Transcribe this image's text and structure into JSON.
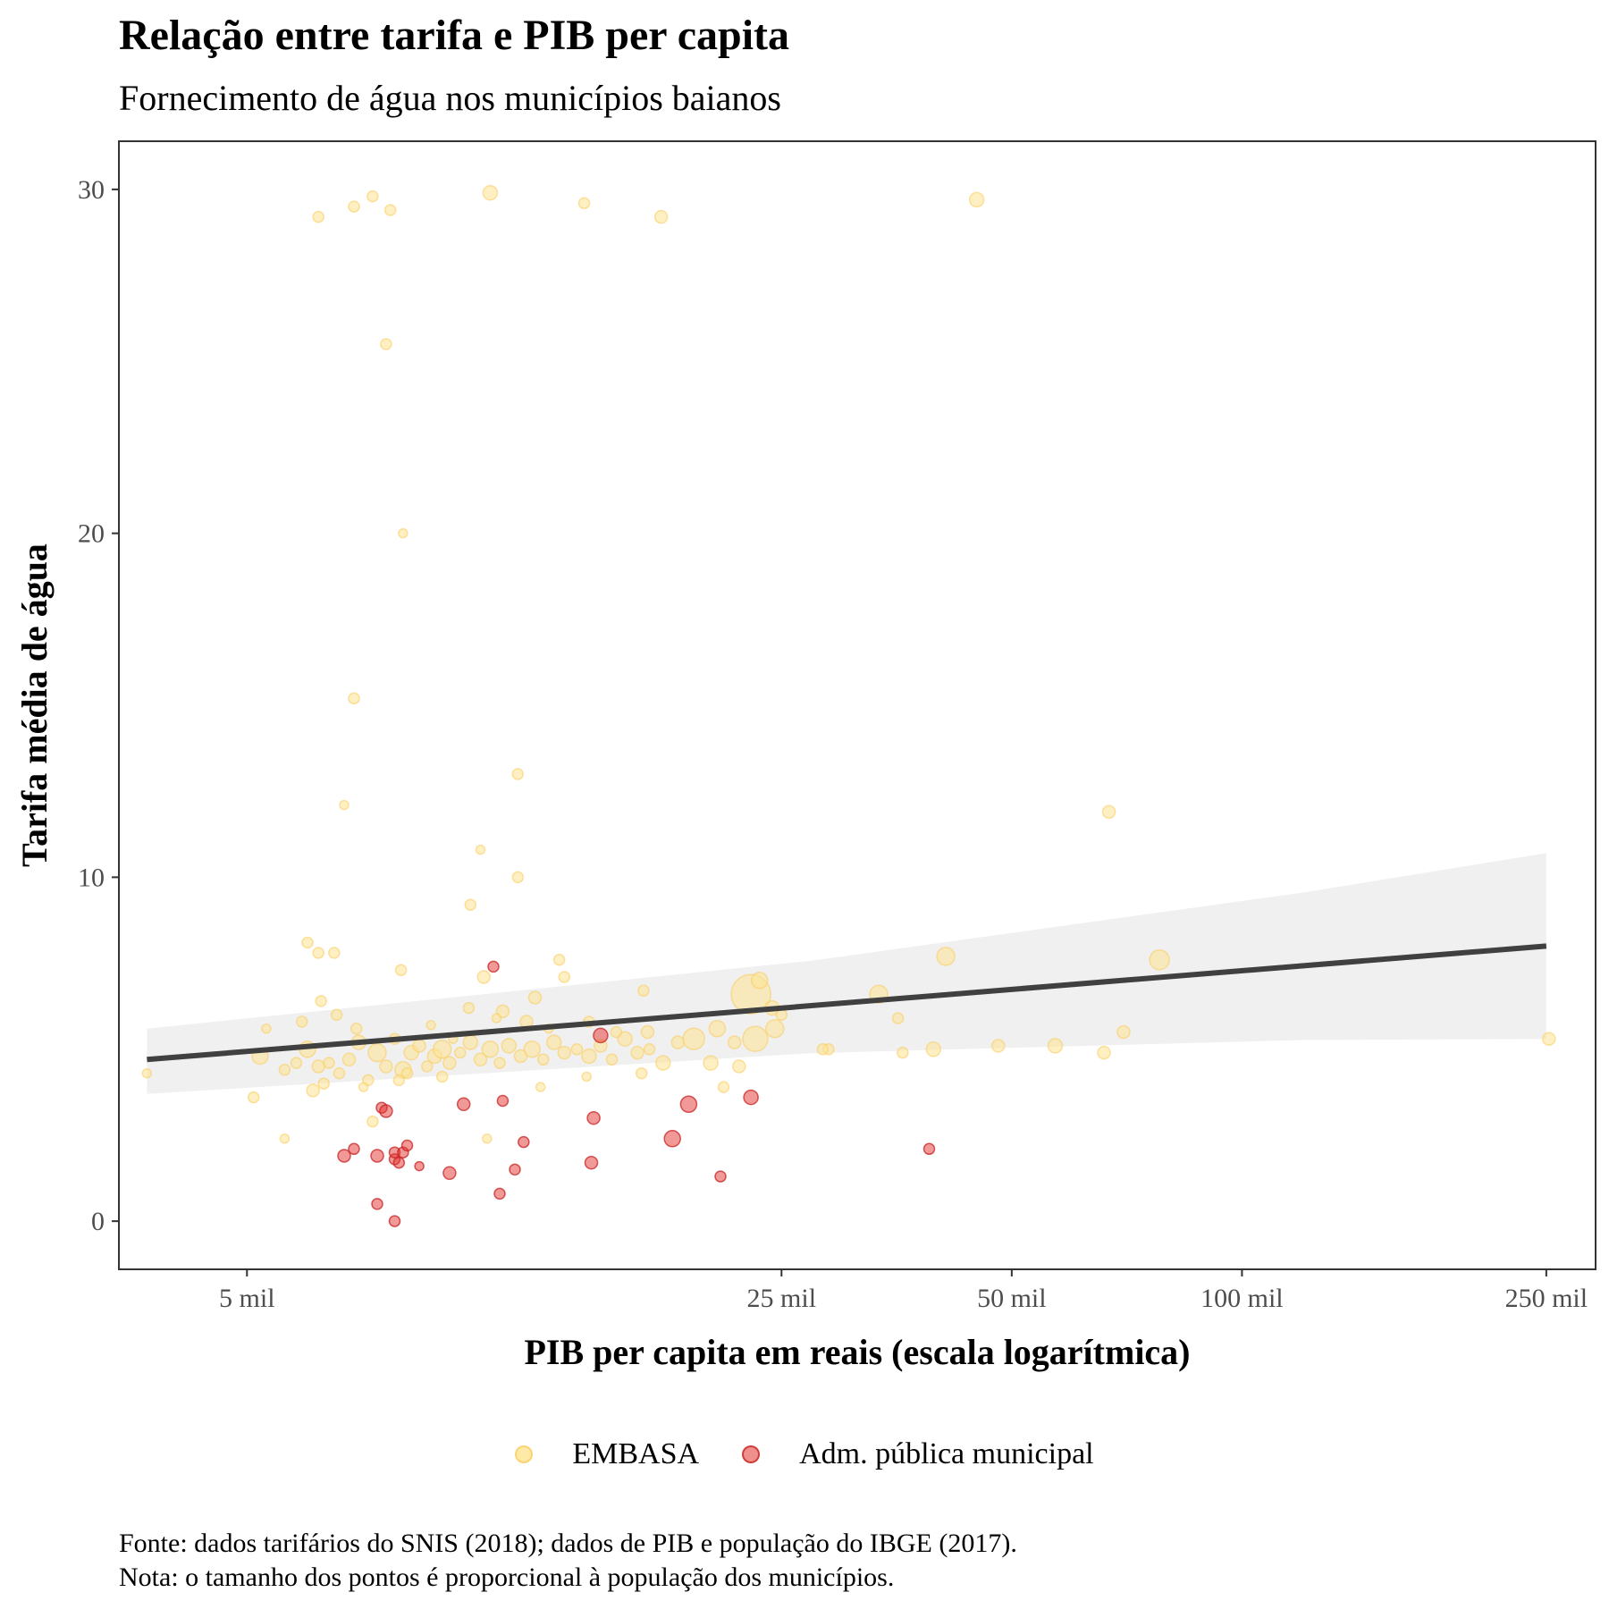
{
  "chart_data": {
    "type": "scatter",
    "title": "Relação entre tarifa e PIB per capita",
    "subtitle": "Fornecimento de água nos municípios baianos",
    "xlabel": "PIB per capita em reais (escala logarítmica)",
    "ylabel": "Tarifa média de água",
    "x_scale": "log",
    "xlim": [
      3400,
      290000
    ],
    "ylim": [
      -1.4,
      31.4
    ],
    "x_ticks": [
      {
        "value": 5000,
        "label": "5 mil"
      },
      {
        "value": 25000,
        "label": "25 mil"
      },
      {
        "value": 50000,
        "label": "50 mil"
      },
      {
        "value": 100000,
        "label": "100 mil"
      },
      {
        "value": 250000,
        "label": "250 mil"
      }
    ],
    "y_ticks": [
      {
        "value": 0,
        "label": "0"
      },
      {
        "value": 10,
        "label": "10"
      },
      {
        "value": 20,
        "label": "20"
      },
      {
        "value": 30,
        "label": "30"
      }
    ],
    "grid": false,
    "legend_position": "bottom",
    "colors": {
      "EMBASA": "#fee391",
      "Adm. pública municipal": "#e3342f",
      "trend": "#404040",
      "ribbon": "#ebebeb"
    },
    "trend_line": {
      "x": [
        3700,
        250000
      ],
      "y": [
        4.7,
        8.0
      ],
      "ci_lower": [
        3.7,
        5.3
      ],
      "ci_upper": [
        5.6,
        10.7
      ]
    },
    "series": [
      {
        "name": "EMBASA",
        "points": [
          [
            3700,
            4.3,
            5
          ],
          [
            5200,
            4.8,
            9
          ],
          [
            5300,
            5.6,
            5
          ],
          [
            5600,
            4.4,
            6
          ],
          [
            5800,
            4.6,
            6
          ],
          [
            6000,
            5.0,
            9
          ],
          [
            6200,
            4.5,
            7
          ],
          [
            6400,
            4.6,
            6
          ],
          [
            6600,
            4.3,
            6
          ],
          [
            6800,
            4.7,
            7
          ],
          [
            7000,
            5.2,
            8
          ],
          [
            7200,
            4.1,
            6
          ],
          [
            7400,
            4.9,
            10
          ],
          [
            7600,
            4.5,
            7
          ],
          [
            7800,
            5.3,
            6
          ],
          [
            8000,
            4.4,
            9
          ],
          [
            8200,
            4.9,
            8
          ],
          [
            8400,
            5.1,
            7
          ],
          [
            8600,
            4.5,
            6
          ],
          [
            8800,
            4.8,
            8
          ],
          [
            9000,
            5.0,
            10
          ],
          [
            9200,
            4.6,
            7
          ],
          [
            9500,
            4.9,
            6
          ],
          [
            9800,
            5.2,
            8
          ],
          [
            10100,
            4.7,
            7
          ],
          [
            10400,
            5.0,
            9
          ],
          [
            10700,
            4.6,
            6
          ],
          [
            11000,
            5.1,
            8
          ],
          [
            11400,
            4.8,
            7
          ],
          [
            11800,
            5.0,
            9
          ],
          [
            12200,
            4.7,
            6
          ],
          [
            12600,
            5.2,
            8
          ],
          [
            13000,
            4.9,
            7
          ],
          [
            13500,
            5.0,
            6
          ],
          [
            14000,
            4.8,
            8
          ],
          [
            14500,
            5.1,
            7
          ],
          [
            15000,
            4.7,
            6
          ],
          [
            15600,
            5.3,
            8
          ],
          [
            16200,
            4.9,
            7
          ],
          [
            16800,
            5.0,
            6
          ],
          [
            17500,
            4.6,
            8
          ],
          [
            18300,
            5.2,
            7
          ],
          [
            5100,
            3.6,
            6
          ],
          [
            6100,
            3.8,
            7
          ],
          [
            6300,
            4.0,
            6
          ],
          [
            7100,
            3.9,
            5
          ],
          [
            5600,
            2.4,
            5
          ],
          [
            7300,
            2.9,
            6
          ],
          [
            10300,
            2.4,
            5
          ],
          [
            12100,
            3.9,
            5
          ],
          [
            13900,
            4.2,
            5
          ],
          [
            16400,
            4.3,
            6
          ],
          [
            21000,
            3.9,
            6
          ],
          [
            22000,
            4.5,
            7
          ],
          [
            6250,
            6.4,
            6
          ],
          [
            6550,
            6.0,
            6
          ],
          [
            6950,
            5.6,
            6
          ],
          [
            7950,
            7.3,
            6
          ],
          [
            9750,
            6.2,
            6
          ],
          [
            10800,
            6.1,
            7
          ],
          [
            11900,
            6.5,
            7
          ],
          [
            13000,
            7.1,
            6
          ],
          [
            16500,
            6.7,
            6
          ],
          [
            10200,
            7.1,
            7
          ],
          [
            11600,
            5.8,
            7
          ],
          [
            5900,
            5.8,
            6
          ],
          [
            6000,
            8.1,
            6
          ],
          [
            6200,
            7.8,
            6
          ],
          [
            6500,
            7.8,
            6
          ],
          [
            6700,
            12.1,
            5
          ],
          [
            6900,
            15.2,
            6
          ],
          [
            7600,
            25.5,
            6
          ],
          [
            7300,
            29.8,
            6
          ],
          [
            7700,
            29.4,
            6
          ],
          [
            6200,
            29.2,
            6
          ],
          [
            6900,
            29.5,
            6
          ],
          [
            8000,
            20.0,
            5
          ],
          [
            9800,
            9.2,
            6
          ],
          [
            10100,
            10.8,
            5
          ],
          [
            10400,
            29.9,
            8
          ],
          [
            11300,
            10.0,
            6
          ],
          [
            11300,
            13.0,
            6
          ],
          [
            12800,
            7.6,
            6
          ],
          [
            13800,
            29.6,
            6
          ],
          [
            17400,
            29.2,
            7
          ],
          [
            22800,
            6.6,
            22
          ],
          [
            23400,
            7.0,
            9
          ],
          [
            24300,
            6.2,
            8
          ],
          [
            24500,
            5.6,
            10
          ],
          [
            23100,
            5.3,
            14
          ],
          [
            21700,
            5.2,
            7
          ],
          [
            20200,
            4.6,
            8
          ],
          [
            20600,
            5.6,
            9
          ],
          [
            19200,
            5.3,
            12
          ],
          [
            16700,
            5.5,
            7
          ],
          [
            15200,
            5.5,
            6
          ],
          [
            14000,
            5.8,
            6
          ],
          [
            33500,
            6.6,
            10
          ],
          [
            35500,
            5.9,
            6
          ],
          [
            36000,
            4.9,
            6
          ],
          [
            39500,
            5.0,
            8
          ],
          [
            41000,
            7.7,
            10
          ],
          [
            45000,
            29.7,
            8
          ],
          [
            48000,
            5.1,
            7
          ],
          [
            57000,
            5.1,
            8
          ],
          [
            66000,
            4.9,
            7
          ],
          [
            67000,
            11.9,
            7
          ],
          [
            70000,
            5.5,
            7
          ],
          [
            78000,
            7.6,
            11
          ],
          [
            252000,
            5.3,
            7
          ],
          [
            28800,
            5.0,
            6
          ],
          [
            28300,
            5.0,
            6
          ],
          [
            25000,
            6.0,
            6
          ],
          [
            8700,
            5.7,
            5
          ],
          [
            9300,
            5.3,
            5
          ],
          [
            10600,
            5.9,
            5
          ],
          [
            12400,
            5.6,
            5
          ],
          [
            9000,
            4.2,
            6
          ],
          [
            8100,
            4.3,
            6
          ],
          [
            7900,
            4.1,
            6
          ]
        ]
      },
      {
        "name": "Adm. pública municipal",
        "points": [
          [
            6700,
            1.9,
            7
          ],
          [
            6900,
            2.1,
            6
          ],
          [
            7400,
            1.9,
            7
          ],
          [
            7500,
            3.3,
            6
          ],
          [
            7600,
            3.2,
            7
          ],
          [
            7800,
            1.8,
            6
          ],
          [
            7800,
            2.0,
            6
          ],
          [
            7900,
            1.7,
            6
          ],
          [
            8000,
            2.0,
            6
          ],
          [
            8100,
            2.2,
            6
          ],
          [
            8400,
            1.6,
            5
          ],
          [
            7400,
            0.5,
            6
          ],
          [
            7800,
            0.0,
            6
          ],
          [
            9200,
            1.4,
            7
          ],
          [
            9600,
            3.4,
            7
          ],
          [
            10700,
            0.8,
            6
          ],
          [
            10800,
            3.5,
            6
          ],
          [
            11200,
            1.5,
            6
          ],
          [
            11500,
            2.3,
            6
          ],
          [
            10500,
            7.4,
            6
          ],
          [
            14100,
            1.7,
            7
          ],
          [
            14200,
            3.0,
            7
          ],
          [
            14500,
            5.4,
            8
          ],
          [
            18000,
            2.4,
            9
          ],
          [
            18900,
            3.4,
            9
          ],
          [
            20800,
            1.3,
            6
          ],
          [
            22800,
            3.6,
            8
          ],
          [
            39000,
            2.1,
            6
          ]
        ]
      }
    ]
  },
  "legend": {
    "items": [
      {
        "label": "EMBASA"
      },
      {
        "label": "Adm. pública municipal"
      }
    ]
  },
  "caption": {
    "source": "Fonte: dados tarifários do SNIS (2018); dados de PIB e população do IBGE (2017).",
    "note": "Nota: o tamanho dos pontos é proporcional à população dos municípios."
  }
}
